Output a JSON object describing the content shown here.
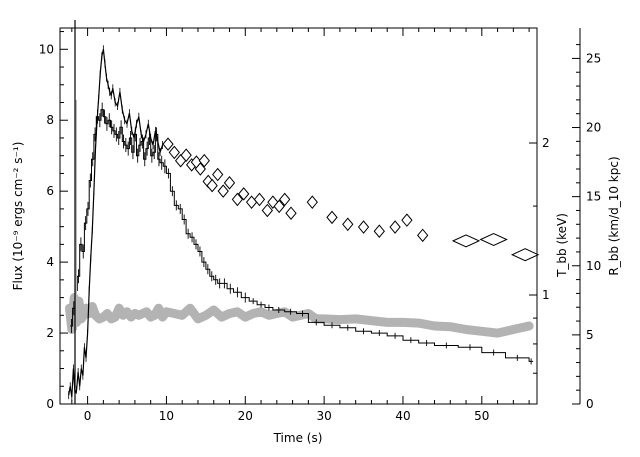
{
  "chart_data": {
    "type": "line",
    "xlabel": "Time (s)",
    "ylabel_left": "Flux (10⁻⁹ ergs cm⁻² s⁻¹)",
    "ylabel_right_inner": "T_bb (keV)",
    "ylabel_right_outer": "R_bb (km/d_10 kpc)",
    "xlim": [
      -3.5,
      57
    ],
    "ylim_left": [
      0,
      10.6
    ],
    "ylim_right_R": [
      0,
      27.2
    ],
    "x_ticks": [
      0,
      10,
      20,
      30,
      40,
      50
    ],
    "y_ticks_left": [
      0,
      2,
      4,
      6,
      8,
      10
    ],
    "y_ticks_R": [
      0,
      5,
      10,
      15,
      20,
      25
    ],
    "y_ticks_T": [
      1,
      2
    ],
    "series": [
      {
        "kind": "flux",
        "style": "stepped line with error bars",
        "color": "#000000",
        "x": [
          -2.2,
          -1.9,
          -1.6,
          -1.3,
          -1.0,
          -0.7,
          -0.4,
          -0.1,
          0.2,
          0.5,
          0.8,
          1.1,
          1.4,
          1.7,
          2.0,
          2.3,
          2.6,
          2.9,
          3.2,
          3.5,
          3.8,
          4.1,
          4.4,
          4.7,
          5.0,
          5.3,
          5.6,
          5.9,
          6.2,
          6.5,
          6.8,
          7.1,
          7.4,
          7.7,
          8.0,
          8.3,
          8.6,
          8.9,
          9.2,
          9.6,
          10.0,
          10.5,
          11.0,
          11.5,
          12.0,
          12.5,
          13.0,
          13.5,
          14.0,
          14.5,
          15.0,
          15.5,
          16.0,
          16.5,
          17.0,
          17.7,
          18.5,
          19.5,
          20.5,
          21.5,
          22.5,
          23.5,
          25.0,
          26.5,
          28.0,
          30.0,
          32.0,
          34.0,
          36.0,
          38.0,
          40.0,
          42.0,
          44.0,
          47.0,
          50.0,
          53.0,
          56.0
        ],
        "y": [
          2.2,
          2.7,
          3.2,
          3.6,
          4.5,
          4.3,
          5.1,
          5.5,
          6.3,
          6.9,
          7.6,
          8.1,
          8.0,
          8.3,
          8.1,
          7.9,
          8.0,
          7.8,
          7.7,
          7.6,
          7.5,
          7.8,
          7.4,
          7.3,
          7.2,
          7.5,
          7.1,
          7.6,
          7.0,
          7.3,
          7.4,
          6.9,
          7.2,
          7.5,
          7.0,
          7.1,
          7.6,
          6.9,
          6.8,
          6.7,
          6.5,
          6.0,
          5.6,
          5.5,
          5.2,
          4.8,
          4.7,
          4.5,
          4.3,
          4.0,
          3.8,
          3.6,
          3.5,
          3.4,
          3.4,
          3.25,
          3.15,
          3.0,
          2.9,
          2.8,
          2.72,
          2.65,
          2.6,
          2.55,
          2.3,
          2.22,
          2.15,
          2.05,
          2.0,
          1.92,
          1.8,
          1.72,
          1.65,
          1.6,
          1.45,
          1.3,
          1.2
        ]
      },
      {
        "kind": "temperature",
        "style": "noisy black line",
        "color": "#000000",
        "x": [
          -2.4,
          -2.2,
          -2.0,
          -1.8,
          -1.6,
          -1.4,
          -1.2,
          -1.0,
          -0.8,
          -0.6,
          -0.4,
          -0.2,
          0.0,
          0.2,
          0.4,
          0.6,
          0.8,
          1.0,
          1.2,
          1.4,
          1.6,
          1.8,
          2.0,
          2.2,
          2.4,
          2.6,
          2.8,
          3.0,
          3.2,
          3.5,
          3.8,
          4.1,
          4.4,
          4.7,
          5.0,
          5.3,
          5.6,
          5.9,
          6.2,
          6.5,
          6.8,
          7.1,
          7.4,
          7.7,
          8.0,
          8.3,
          8.6,
          8.9,
          9.2,
          9.5
        ],
        "y": [
          0.25,
          0.5,
          0.2,
          1.0,
          0.3,
          0.4,
          0.9,
          0.5,
          1.0,
          0.8,
          1.6,
          1.3,
          2.0,
          3.2,
          4.1,
          4.9,
          6.0,
          7.2,
          8.0,
          8.6,
          9.3,
          9.8,
          10.0,
          9.6,
          9.2,
          9.0,
          8.8,
          8.7,
          8.9,
          8.5,
          8.4,
          8.8,
          8.3,
          8.0,
          7.9,
          8.2,
          7.7,
          7.5,
          7.9,
          8.1,
          7.6,
          7.4,
          7.6,
          7.9,
          7.5,
          7.3,
          7.7,
          7.4,
          7.1,
          7.3
        ]
      },
      {
        "kind": "radius",
        "style": "open diamonds",
        "color": "#000000",
        "x": [
          10.2,
          11.0,
          11.8,
          12.5,
          13.2,
          13.8,
          14.3,
          14.8,
          15.3,
          15.8,
          16.5,
          17.2,
          18.0,
          19.0,
          19.8,
          20.8,
          21.8,
          22.8,
          23.5,
          24.3,
          25.0,
          25.8,
          28.5,
          31.0,
          33.0,
          35.0,
          37.0,
          39.0,
          40.5,
          42.5,
          48.0,
          51.5,
          55.5
        ],
        "y": [
          18.8,
          18.2,
          17.6,
          18.0,
          17.3,
          17.5,
          17.0,
          17.6,
          16.1,
          15.8,
          16.6,
          15.4,
          16.0,
          14.8,
          15.2,
          14.6,
          14.8,
          14.0,
          14.6,
          14.3,
          14.8,
          13.8,
          14.6,
          13.5,
          13.0,
          12.8,
          12.5,
          12.8,
          13.3,
          12.2,
          11.8,
          11.9,
          10.8
        ]
      },
      {
        "kind": "gray band",
        "style": "thick gray band",
        "color": "#b3b3b3",
        "x": [
          -2.3,
          -2.0,
          -1.7,
          -1.4,
          -1.1,
          -0.8,
          -0.5,
          -0.2,
          0.2,
          0.6,
          1.0,
          1.5,
          2.0,
          2.5,
          3.0,
          3.5,
          4.0,
          4.5,
          5.0,
          5.5,
          6.0,
          6.5,
          7.0,
          7.5,
          8.0,
          8.5,
          9.0,
          9.5,
          10,
          11,
          12,
          13,
          14,
          15,
          16,
          17,
          18,
          19,
          20,
          21,
          22,
          23,
          24,
          25,
          26,
          27,
          28,
          29,
          30,
          32,
          34,
          36,
          38,
          40,
          42,
          44,
          46,
          48,
          50,
          52,
          54,
          56
        ],
        "y": [
          2.7,
          2.1,
          3.0,
          2.3,
          2.9,
          2.4,
          2.5,
          2.7,
          2.55,
          2.75,
          2.5,
          2.4,
          2.45,
          2.55,
          2.4,
          2.45,
          2.7,
          2.5,
          2.6,
          2.45,
          2.55,
          2.5,
          2.55,
          2.6,
          2.45,
          2.5,
          2.7,
          2.45,
          2.6,
          2.55,
          2.5,
          2.7,
          2.4,
          2.5,
          2.65,
          2.45,
          2.55,
          2.6,
          2.45,
          2.55,
          2.6,
          2.5,
          2.55,
          2.6,
          2.45,
          2.5,
          2.55,
          2.4,
          2.4,
          2.38,
          2.4,
          2.35,
          2.3,
          2.3,
          2.28,
          2.2,
          2.18,
          2.1,
          2.05,
          2.0,
          2.1,
          2.2
        ]
      }
    ]
  }
}
